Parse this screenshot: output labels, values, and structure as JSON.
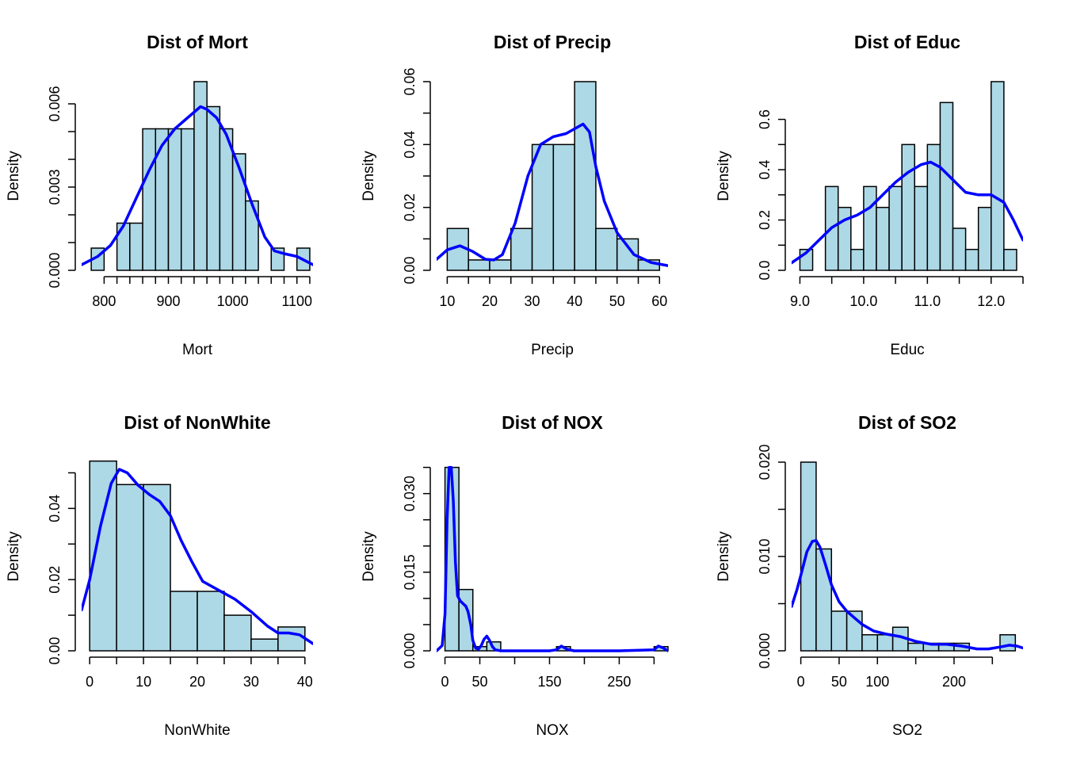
{
  "chart_data": [
    {
      "type": "bar",
      "title": "Dist of Mort",
      "xlabel": "Mort",
      "ylabel": "Density",
      "xlim": [
        765,
        1125
      ],
      "ylim": [
        0,
        0.0068
      ],
      "x_ticks": [
        800,
        900,
        1000,
        1100
      ],
      "x_tick_labels": [
        "800",
        "900",
        "1000",
        "1100"
      ],
      "x_minor_ticks": [
        800,
        820,
        840,
        860,
        880,
        900,
        920,
        940,
        960,
        980,
        1000,
        1020,
        1040,
        1060,
        1080,
        1100,
        1120
      ],
      "y_ticks": [
        0,
        0.001,
        0.002,
        0.003,
        0.004,
        0.005,
        0.006
      ],
      "y_tick_labels": [
        "0.000",
        "",
        "",
        "0.003",
        "",
        "",
        "0.006"
      ],
      "bins": [
        {
          "x0": 780,
          "x1": 800,
          "value": 0.0008
        },
        {
          "x0": 800,
          "x1": 820,
          "value": 0
        },
        {
          "x0": 820,
          "x1": 840,
          "value": 0.0017
        },
        {
          "x0": 840,
          "x1": 860,
          "value": 0.0017
        },
        {
          "x0": 860,
          "x1": 880,
          "value": 0.0051
        },
        {
          "x0": 880,
          "x1": 900,
          "value": 0.0051
        },
        {
          "x0": 900,
          "x1": 920,
          "value": 0.0051
        },
        {
          "x0": 920,
          "x1": 940,
          "value": 0.0051
        },
        {
          "x0": 940,
          "x1": 960,
          "value": 0.0068
        },
        {
          "x0": 960,
          "x1": 980,
          "value": 0.0059
        },
        {
          "x0": 980,
          "x1": 1000,
          "value": 0.0051
        },
        {
          "x0": 1000,
          "x1": 1020,
          "value": 0.0042
        },
        {
          "x0": 1020,
          "x1": 1040,
          "value": 0.0025
        },
        {
          "x0": 1040,
          "x1": 1060,
          "value": 0
        },
        {
          "x0": 1060,
          "x1": 1080,
          "value": 0.0008
        },
        {
          "x0": 1080,
          "x1": 1100,
          "value": 0
        },
        {
          "x0": 1100,
          "x1": 1120,
          "value": 0.0008
        }
      ],
      "density": {
        "name": "",
        "x": [
          765,
          790,
          810,
          830,
          850,
          870,
          890,
          910,
          930,
          950,
          960,
          975,
          990,
          1010,
          1030,
          1050,
          1065,
          1080,
          1100,
          1125
        ],
        "y": [
          0.0002,
          0.0005,
          0.0009,
          0.0016,
          0.0026,
          0.0036,
          0.0045,
          0.0051,
          0.0055,
          0.0059,
          0.0058,
          0.0055,
          0.0049,
          0.0037,
          0.0024,
          0.0012,
          0.0007,
          0.0006,
          0.0005,
          0.0002
        ]
      }
    },
    {
      "type": "bar",
      "title": "Dist of Precip",
      "xlabel": "Precip",
      "ylabel": "Density",
      "xlim": [
        7.5,
        62
      ],
      "ylim": [
        0,
        0.06
      ],
      "x_ticks": [
        10,
        20,
        30,
        40,
        50,
        60
      ],
      "x_tick_labels": [
        "10",
        "20",
        "30",
        "40",
        "50",
        "60"
      ],
      "x_minor_ticks": [
        10,
        15,
        20,
        25,
        30,
        35,
        40,
        45,
        50,
        55,
        60
      ],
      "y_ticks": [
        0,
        0.01,
        0.02,
        0.03,
        0.04,
        0.05,
        0.06
      ],
      "y_tick_labels": [
        "0.00",
        "",
        "0.02",
        "",
        "0.04",
        "",
        "0.06"
      ],
      "bins": [
        {
          "x0": 10,
          "x1": 15,
          "value": 0.0133
        },
        {
          "x0": 15,
          "x1": 20,
          "value": 0.0033
        },
        {
          "x0": 20,
          "x1": 25,
          "value": 0.0033
        },
        {
          "x0": 25,
          "x1": 30,
          "value": 0.0133
        },
        {
          "x0": 30,
          "x1": 35,
          "value": 0.04
        },
        {
          "x0": 35,
          "x1": 40,
          "value": 0.04
        },
        {
          "x0": 40,
          "x1": 45,
          "value": 0.06
        },
        {
          "x0": 45,
          "x1": 50,
          "value": 0.0133
        },
        {
          "x0": 50,
          "x1": 55,
          "value": 0.01
        },
        {
          "x0": 55,
          "x1": 60,
          "value": 0.0033
        }
      ],
      "density": {
        "name": "",
        "x": [
          7.5,
          10,
          13,
          16,
          19,
          21,
          23,
          26,
          29,
          32,
          35,
          38,
          40,
          42,
          43.5,
          45,
          47,
          50,
          54,
          58,
          62
        ],
        "y": [
          0.0035,
          0.0065,
          0.0078,
          0.006,
          0.0035,
          0.0033,
          0.005,
          0.015,
          0.03,
          0.04,
          0.0425,
          0.0435,
          0.045,
          0.0465,
          0.044,
          0.033,
          0.022,
          0.012,
          0.005,
          0.0025,
          0.0015
        ]
      }
    },
    {
      "type": "bar",
      "title": "Dist of Educ",
      "xlabel": "Educ",
      "ylabel": "Density",
      "xlim": [
        8.87,
        12.5
      ],
      "ylim": [
        0,
        0.75
      ],
      "x_ticks": [
        9.0,
        10.0,
        11.0,
        12.0
      ],
      "x_tick_labels": [
        "9.0",
        "10.0",
        "11.0",
        "12.0"
      ],
      "x_minor_ticks": [
        9.0,
        9.5,
        10.0,
        10.5,
        11.0,
        11.5,
        12.0,
        12.5
      ],
      "y_ticks": [
        0,
        0.1,
        0.2,
        0.3,
        0.4,
        0.5,
        0.6
      ],
      "y_tick_labels": [
        "0.0",
        "",
        "0.2",
        "",
        "0.4",
        "",
        "0.6"
      ],
      "bins": [
        {
          "x0": 9.0,
          "x1": 9.2,
          "value": 0.083
        },
        {
          "x0": 9.2,
          "x1": 9.4,
          "value": 0
        },
        {
          "x0": 9.4,
          "x1": 9.6,
          "value": 0.333
        },
        {
          "x0": 9.6,
          "x1": 9.8,
          "value": 0.25
        },
        {
          "x0": 9.8,
          "x1": 10.0,
          "value": 0.083
        },
        {
          "x0": 10.0,
          "x1": 10.2,
          "value": 0.333
        },
        {
          "x0": 10.2,
          "x1": 10.4,
          "value": 0.25
        },
        {
          "x0": 10.4,
          "x1": 10.6,
          "value": 0.333
        },
        {
          "x0": 10.6,
          "x1": 10.8,
          "value": 0.5
        },
        {
          "x0": 10.8,
          "x1": 11.0,
          "value": 0.333
        },
        {
          "x0": 11.0,
          "x1": 11.2,
          "value": 0.5
        },
        {
          "x0": 11.2,
          "x1": 11.4,
          "value": 0.667
        },
        {
          "x0": 11.4,
          "x1": 11.6,
          "value": 0.167
        },
        {
          "x0": 11.6,
          "x1": 11.8,
          "value": 0.083
        },
        {
          "x0": 11.8,
          "x1": 12.0,
          "value": 0.25
        },
        {
          "x0": 12.0,
          "x1": 12.2,
          "value": 0.75
        },
        {
          "x0": 12.2,
          "x1": 12.4,
          "value": 0.083
        }
      ],
      "density": {
        "name": "",
        "x": [
          8.87,
          9.1,
          9.3,
          9.5,
          9.7,
          9.9,
          10.1,
          10.3,
          10.5,
          10.7,
          10.9,
          11.05,
          11.2,
          11.4,
          11.6,
          11.8,
          12.0,
          12.2,
          12.35,
          12.5
        ],
        "y": [
          0.03,
          0.07,
          0.12,
          0.17,
          0.2,
          0.22,
          0.25,
          0.3,
          0.35,
          0.39,
          0.42,
          0.43,
          0.41,
          0.36,
          0.31,
          0.3,
          0.3,
          0.27,
          0.2,
          0.12
        ]
      }
    },
    {
      "type": "bar",
      "title": "Dist of NonWhite",
      "xlabel": "NonWhite",
      "ylabel": "Density",
      "xlim": [
        -1.5,
        41.5
      ],
      "ylim": [
        0,
        0.053
      ],
      "x_ticks": [
        0,
        10,
        20,
        30,
        40
      ],
      "x_tick_labels": [
        "0",
        "10",
        "20",
        "30",
        "40"
      ],
      "x_minor_ticks": [
        0,
        5,
        10,
        15,
        20,
        25,
        30,
        35,
        40
      ],
      "y_ticks": [
        0,
        0.01,
        0.02,
        0.03,
        0.04,
        0.05
      ],
      "y_tick_labels": [
        "0.00",
        "",
        "0.02",
        "",
        "0.04",
        ""
      ],
      "bins": [
        {
          "x0": 0,
          "x1": 5,
          "value": 0.0533
        },
        {
          "x0": 5,
          "x1": 10,
          "value": 0.0467
        },
        {
          "x0": 10,
          "x1": 15,
          "value": 0.0467
        },
        {
          "x0": 15,
          "x1": 20,
          "value": 0.0167
        },
        {
          "x0": 20,
          "x1": 25,
          "value": 0.0167
        },
        {
          "x0": 25,
          "x1": 30,
          "value": 0.01
        },
        {
          "x0": 30,
          "x1": 35,
          "value": 0.0033
        },
        {
          "x0": 35,
          "x1": 40,
          "value": 0.0067
        }
      ],
      "density": {
        "name": "",
        "x": [
          -1.5,
          0,
          2,
          4,
          5.5,
          7,
          9,
          11,
          13,
          15,
          17,
          19,
          21,
          24,
          27,
          30,
          33,
          35,
          37,
          39,
          41.5
        ],
        "y": [
          0.0115,
          0.02,
          0.035,
          0.047,
          0.051,
          0.05,
          0.0465,
          0.044,
          0.042,
          0.038,
          0.031,
          0.025,
          0.0195,
          0.017,
          0.0145,
          0.011,
          0.007,
          0.005,
          0.005,
          0.0045,
          0.002
        ]
      }
    },
    {
      "type": "bar",
      "title": "Dist of NOX",
      "xlabel": "NOX",
      "ylabel": "Density",
      "xlim": [
        -12,
        320
      ],
      "ylim": [
        0,
        0.036
      ],
      "x_ticks": [
        0,
        50,
        150,
        250
      ],
      "x_tick_labels": [
        "0",
        "50",
        "150",
        "250"
      ],
      "x_minor_ticks": [
        0,
        50,
        100,
        150,
        200,
        250,
        300
      ],
      "y_ticks": [
        0,
        0.005,
        0.01,
        0.015,
        0.02,
        0.025,
        0.03,
        0.035
      ],
      "y_tick_labels": [
        "0.000",
        "",
        "",
        "0.015",
        "",
        "",
        "0.030",
        ""
      ],
      "bins": [
        {
          "x0": 0,
          "x1": 20,
          "value": 0.035
        },
        {
          "x0": 20,
          "x1": 40,
          "value": 0.0117
        },
        {
          "x0": 40,
          "x1": 60,
          "value": 0.0008
        },
        {
          "x0": 60,
          "x1": 80,
          "value": 0.0017
        },
        {
          "x0": 80,
          "x1": 100,
          "value": 0
        },
        {
          "x0": 100,
          "x1": 120,
          "value": 0
        },
        {
          "x0": 120,
          "x1": 140,
          "value": 0
        },
        {
          "x0": 140,
          "x1": 160,
          "value": 0
        },
        {
          "x0": 160,
          "x1": 180,
          "value": 0.0008
        },
        {
          "x0": 180,
          "x1": 200,
          "value": 0
        },
        {
          "x0": 200,
          "x1": 220,
          "value": 0
        },
        {
          "x0": 220,
          "x1": 240,
          "value": 0
        },
        {
          "x0": 240,
          "x1": 260,
          "value": 0
        },
        {
          "x0": 260,
          "x1": 280,
          "value": 0
        },
        {
          "x0": 280,
          "x1": 300,
          "value": 0
        },
        {
          "x0": 300,
          "x1": 320,
          "value": 0.0008
        }
      ],
      "density": {
        "name": "",
        "x": [
          -12,
          -4,
          0,
          3,
          6,
          9,
          12,
          15,
          18,
          22,
          26,
          30,
          33,
          37,
          40,
          44,
          48,
          52,
          56,
          60,
          64,
          68,
          72,
          80,
          100,
          150,
          160,
          167,
          175,
          185,
          250,
          300,
          306,
          312,
          320
        ],
        "y": [
          0,
          0.001,
          0.007,
          0.025,
          0.035,
          0.035,
          0.0285,
          0.017,
          0.0105,
          0.0095,
          0.009,
          0.0085,
          0.0075,
          0.005,
          0.002,
          0.0005,
          0.0003,
          0.001,
          0.0022,
          0.0028,
          0.002,
          0.0008,
          0.0002,
          0,
          0,
          0,
          0.0002,
          0.0009,
          0.0003,
          0,
          0,
          0.0002,
          0.0009,
          0.0006,
          0
        ]
      }
    },
    {
      "type": "bar",
      "title": "Dist of SO2",
      "xlabel": "SO2",
      "ylabel": "Density",
      "xlim": [
        -12,
        290
      ],
      "ylim": [
        0,
        0.02
      ],
      "x_ticks": [
        0,
        50,
        100,
        200
      ],
      "x_tick_labels": [
        "0",
        "50",
        "100",
        "200"
      ],
      "x_minor_ticks": [
        0,
        50,
        100,
        150,
        200,
        250
      ],
      "y_ticks": [
        0,
        0.005,
        0.01,
        0.015,
        0.02
      ],
      "y_tick_labels": [
        "0.000",
        "",
        "0.010",
        "",
        "0.020"
      ],
      "bins": [
        {
          "x0": 0,
          "x1": 20,
          "value": 0.02
        },
        {
          "x0": 20,
          "x1": 40,
          "value": 0.0108
        },
        {
          "x0": 40,
          "x1": 60,
          "value": 0.0042
        },
        {
          "x0": 60,
          "x1": 80,
          "value": 0.0042
        },
        {
          "x0": 80,
          "x1": 100,
          "value": 0.0017
        },
        {
          "x0": 100,
          "x1": 120,
          "value": 0.0017
        },
        {
          "x0": 120,
          "x1": 140,
          "value": 0.0025
        },
        {
          "x0": 140,
          "x1": 160,
          "value": 0.0008
        },
        {
          "x0": 160,
          "x1": 180,
          "value": 0.0008
        },
        {
          "x0": 180,
          "x1": 200,
          "value": 0.0008
        },
        {
          "x0": 200,
          "x1": 220,
          "value": 0.0008
        },
        {
          "x0": 220,
          "x1": 240,
          "value": 0
        },
        {
          "x0": 240,
          "x1": 260,
          "value": 0
        },
        {
          "x0": 260,
          "x1": 280,
          "value": 0.0017
        }
      ],
      "density": {
        "name": "",
        "x": [
          -12,
          -5,
          0,
          8,
          15,
          20,
          25,
          32,
          40,
          50,
          60,
          70,
          80,
          95,
          110,
          130,
          150,
          170,
          190,
          210,
          230,
          245,
          260,
          272,
          282,
          290
        ],
        "y": [
          0.0047,
          0.0065,
          0.008,
          0.0105,
          0.0116,
          0.0117,
          0.011,
          0.0092,
          0.007,
          0.0052,
          0.0042,
          0.0035,
          0.0028,
          0.0021,
          0.0018,
          0.0015,
          0.001,
          0.0007,
          0.0007,
          0.0005,
          0.0002,
          0.0002,
          0.0004,
          0.0006,
          0.0005,
          0.0003
        ]
      }
    }
  ]
}
